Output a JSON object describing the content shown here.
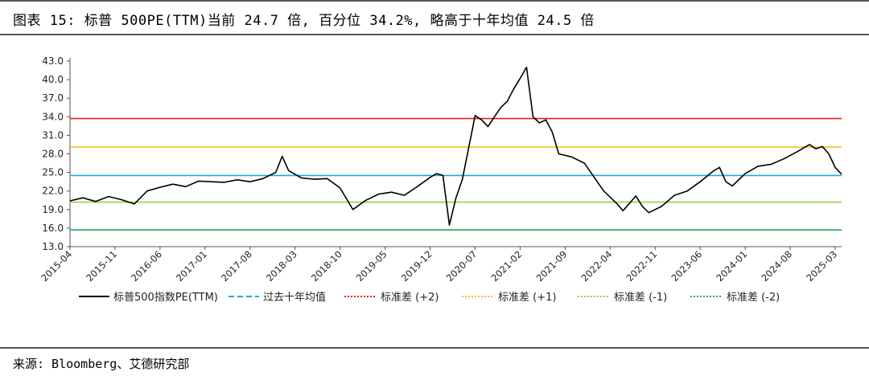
{
  "title": "图表 15: 标普 500PE(TTM)当前 24.7 倍, 百分位 34.2%, 略高于十年均值 24.5 倍",
  "source": "来源: Bloomberg、艾德研究部",
  "chart_data": {
    "type": "line",
    "ylim": [
      13.0,
      43.0
    ],
    "y_ticks": [
      "43.0",
      "40.0",
      "37.0",
      "34.0",
      "31.0",
      "28.0",
      "25.0",
      "22.0",
      "19.0",
      "16.0",
      "13.0"
    ],
    "x_ticks": [
      "2015-04",
      "2015-11",
      "2016-06",
      "2017-01",
      "2017-08",
      "2018-03",
      "2018-10",
      "2019-05",
      "2019-12",
      "2020-07",
      "2021-02",
      "2021-09",
      "2022-04",
      "2022-11",
      "2023-06",
      "2024-01",
      "2024-08",
      "2025-03"
    ],
    "x_range": [
      "2015-04",
      "2025-04"
    ],
    "series": [
      {
        "name": "标普500指数PE(TTM)",
        "style": "solid",
        "color": "#000000",
        "points": [
          [
            "2015-04",
            20.4
          ],
          [
            "2015-06",
            20.9
          ],
          [
            "2015-08",
            20.3
          ],
          [
            "2015-10",
            21.1
          ],
          [
            "2015-12",
            20.6
          ],
          [
            "2016-02",
            19.9
          ],
          [
            "2016-04",
            22.0
          ],
          [
            "2016-06",
            22.6
          ],
          [
            "2016-08",
            23.1
          ],
          [
            "2016-10",
            22.7
          ],
          [
            "2016-12",
            23.6
          ],
          [
            "2017-02",
            23.5
          ],
          [
            "2017-04",
            23.4
          ],
          [
            "2017-06",
            23.8
          ],
          [
            "2017-08",
            23.5
          ],
          [
            "2017-10",
            24.0
          ],
          [
            "2017-12",
            25.0
          ],
          [
            "2018-01",
            27.6
          ],
          [
            "2018-02",
            25.3
          ],
          [
            "2018-04",
            24.1
          ],
          [
            "2018-06",
            23.9
          ],
          [
            "2018-08",
            24.0
          ],
          [
            "2018-10",
            22.5
          ],
          [
            "2018-12",
            19.0
          ],
          [
            "2019-02",
            20.5
          ],
          [
            "2019-04",
            21.5
          ],
          [
            "2019-06",
            21.8
          ],
          [
            "2019-08",
            21.3
          ],
          [
            "2019-10",
            22.7
          ],
          [
            "2019-12",
            24.2
          ],
          [
            "2020-01",
            24.8
          ],
          [
            "2020-02",
            24.5
          ],
          [
            "2020-03",
            16.5
          ],
          [
            "2020-04",
            20.8
          ],
          [
            "2020-05",
            23.8
          ],
          [
            "2020-06",
            29.0
          ],
          [
            "2020-07",
            34.2
          ],
          [
            "2020-08",
            33.5
          ],
          [
            "2020-09",
            32.4
          ],
          [
            "2020-10",
            34.0
          ],
          [
            "2020-11",
            35.5
          ],
          [
            "2020-12",
            36.5
          ],
          [
            "2021-01",
            38.5
          ],
          [
            "2021-02",
            40.2
          ],
          [
            "2021-03",
            42.0
          ],
          [
            "2021-04",
            34.0
          ],
          [
            "2021-05",
            33.0
          ],
          [
            "2021-06",
            33.5
          ],
          [
            "2021-07",
            31.5
          ],
          [
            "2021-08",
            28.0
          ],
          [
            "2021-10",
            27.5
          ],
          [
            "2021-12",
            26.5
          ],
          [
            "2022-02",
            23.5
          ],
          [
            "2022-03",
            22.0
          ],
          [
            "2022-05",
            20.0
          ],
          [
            "2022-06",
            18.8
          ],
          [
            "2022-08",
            21.2
          ],
          [
            "2022-09",
            19.5
          ],
          [
            "2022-10",
            18.5
          ],
          [
            "2022-12",
            19.5
          ],
          [
            "2023-02",
            21.3
          ],
          [
            "2023-04",
            22.0
          ],
          [
            "2023-06",
            23.5
          ],
          [
            "2023-08",
            25.2
          ],
          [
            "2023-09",
            25.8
          ],
          [
            "2023-10",
            23.5
          ],
          [
            "2023-11",
            22.8
          ],
          [
            "2024-01",
            24.8
          ],
          [
            "2024-03",
            26.0
          ],
          [
            "2024-05",
            26.3
          ],
          [
            "2024-07",
            27.2
          ],
          [
            "2024-09",
            28.3
          ],
          [
            "2024-11",
            29.5
          ],
          [
            "2024-12",
            28.8
          ],
          [
            "2025-01",
            29.2
          ],
          [
            "2025-02",
            28.0
          ],
          [
            "2025-03",
            25.8
          ],
          [
            "2025-04",
            24.7
          ]
        ]
      },
      {
        "name": "过去十年均值",
        "style": "dashed",
        "color": "#1fa7e0",
        "value": 24.5
      },
      {
        "name": "标准差 (+2)",
        "style": "dotted",
        "color": "#e0201c",
        "value": 33.7
      },
      {
        "name": "标准差 (+1)",
        "style": "dotted",
        "color": "#f2c21b",
        "value": 29.1
      },
      {
        "name": "标准差 (-1)",
        "style": "dotted",
        "color": "#8fd14f",
        "value": 20.2
      },
      {
        "name": "标准差 (-2)",
        "style": "dotted",
        "color": "#22a85a",
        "value": 15.7
      }
    ],
    "legend_position": "bottom",
    "grid": false
  }
}
